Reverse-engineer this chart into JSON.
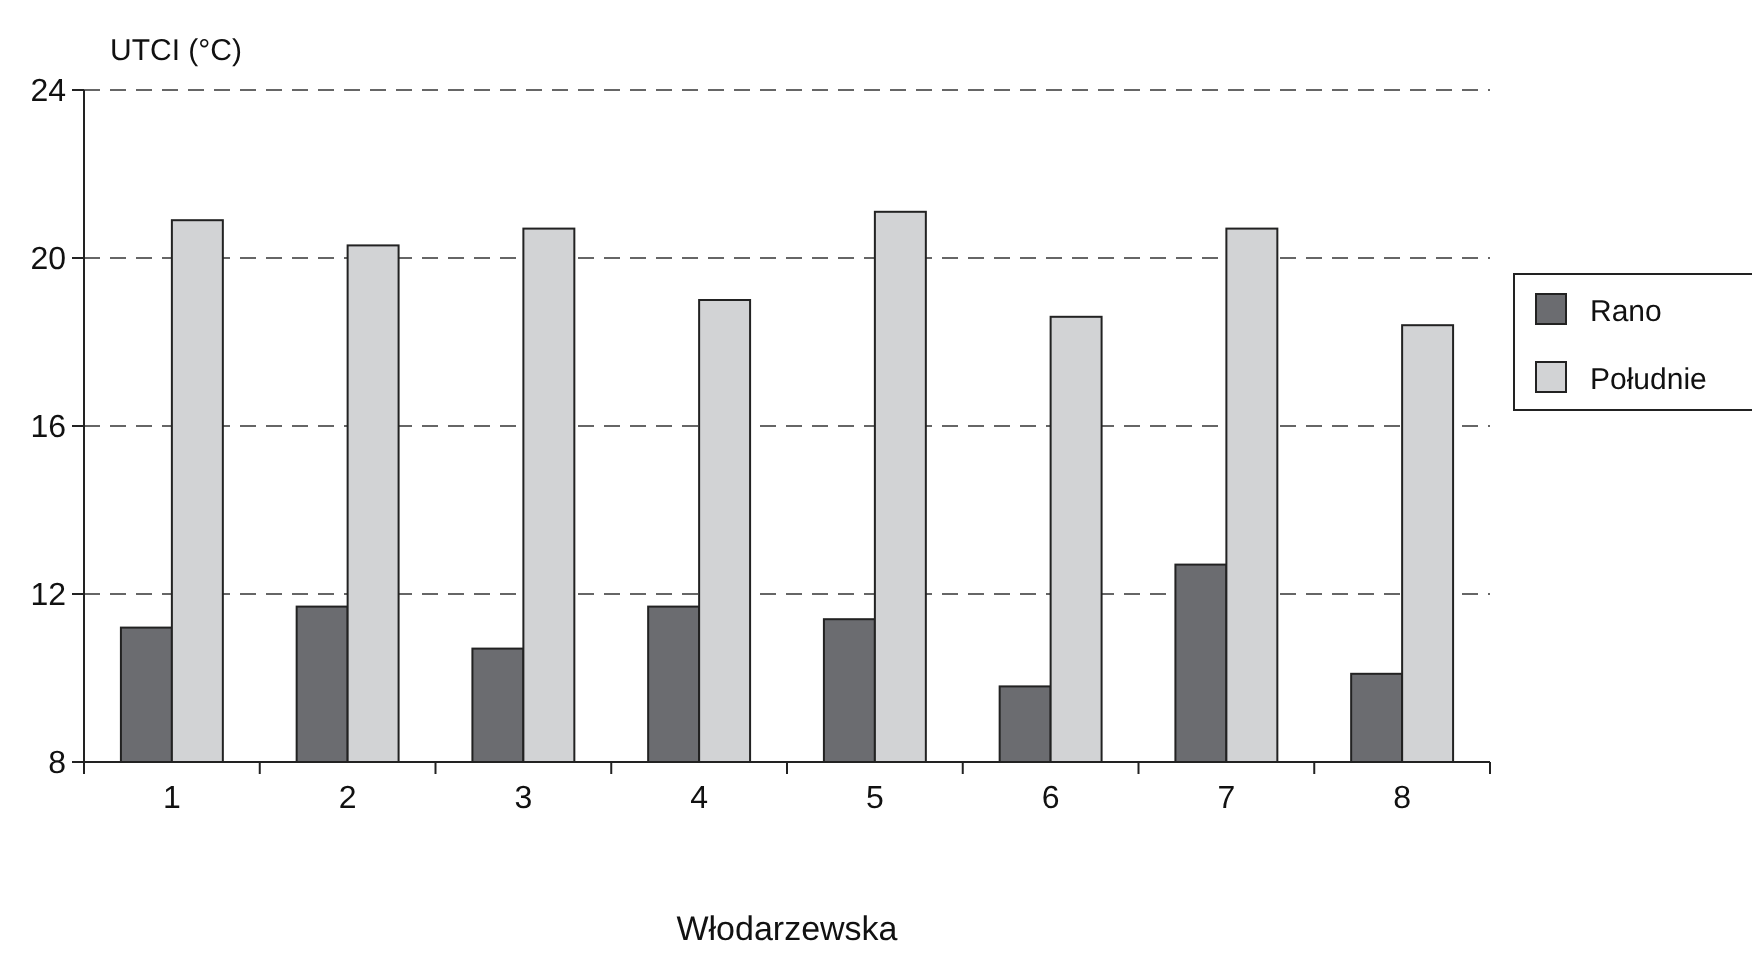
{
  "chart_data": {
    "type": "bar",
    "ylabel": "UTCI (°C)",
    "xlabel": "Włodarzewska",
    "categories": [
      "1",
      "2",
      "3",
      "4",
      "5",
      "6",
      "7",
      "8"
    ],
    "series": [
      {
        "name": "Rano",
        "color": "#6b6c70",
        "values": [
          11.2,
          11.7,
          10.7,
          11.7,
          11.4,
          9.8,
          12.7,
          10.1
        ]
      },
      {
        "name": "Południe",
        "color": "#d2d3d5",
        "values": [
          20.9,
          20.3,
          20.7,
          19.0,
          21.1,
          18.6,
          20.7,
          18.4
        ]
      }
    ],
    "ylim": [
      8,
      24
    ],
    "yticks": [
      8,
      12,
      16,
      20,
      24
    ],
    "grid": "y",
    "legend": "right"
  }
}
